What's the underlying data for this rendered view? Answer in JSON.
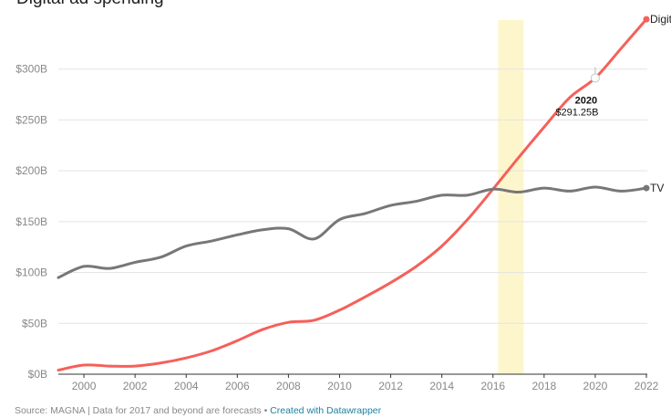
{
  "header": {
    "title": "Digital ad spending"
  },
  "footer": {
    "source": "Source: MAGNA | Data for 2017 and beyond are forecasts",
    "separator": "•",
    "credit": "Created with Datawrapper"
  },
  "chart_data": {
    "type": "line",
    "title": "Digital ad spending",
    "xlabel": "",
    "ylabel": "",
    "xlim": [
      1999,
      2022
    ],
    "ylim": [
      0,
      350
    ],
    "x_ticks": [
      {
        "value": 2000,
        "label": "2000"
      },
      {
        "value": 2002,
        "label": "2002"
      },
      {
        "value": 2004,
        "label": "2004"
      },
      {
        "value": 2006,
        "label": "2006"
      },
      {
        "value": 2008,
        "label": "2008"
      },
      {
        "value": 2010,
        "label": "2010"
      },
      {
        "value": 2012,
        "label": "2012"
      },
      {
        "value": 2014,
        "label": "2014"
      },
      {
        "value": 2016,
        "label": "2016"
      },
      {
        "value": 2018,
        "label": "2018"
      },
      {
        "value": 2020,
        "label": "2020"
      },
      {
        "value": 2022,
        "label": "2022"
      }
    ],
    "y_ticks": [
      {
        "value": 0,
        "label": "$0B"
      },
      {
        "value": 50,
        "label": "$50B"
      },
      {
        "value": 100,
        "label": "$100B"
      },
      {
        "value": 150,
        "label": "$150B"
      },
      {
        "value": 200,
        "label": "$200B"
      },
      {
        "value": 250,
        "label": "$250B"
      },
      {
        "value": 300,
        "label": "$300B"
      }
    ],
    "grid": "horizontal",
    "highlight_band": [
      2016.2,
      2017.2
    ],
    "series": [
      {
        "name": "Digital",
        "color": "#f5605a",
        "x": [
          1999,
          2000,
          2001,
          2002,
          2003,
          2004,
          2005,
          2006,
          2007,
          2008,
          2009,
          2010,
          2011,
          2012,
          2013,
          2014,
          2015,
          2016,
          2017,
          2018,
          2019,
          2020,
          2021,
          2022
        ],
        "values": [
          4,
          9,
          8,
          8,
          11,
          16,
          23,
          33,
          44,
          51,
          53,
          63,
          76,
          90,
          106,
          126,
          152,
          182,
          213,
          243,
          272,
          291.25,
          320,
          349
        ]
      },
      {
        "name": "TV",
        "color": "#777777",
        "x": [
          1999,
          2000,
          2001,
          2002,
          2003,
          2004,
          2005,
          2006,
          2007,
          2008,
          2009,
          2010,
          2011,
          2012,
          2013,
          2014,
          2015,
          2016,
          2017,
          2018,
          2019,
          2020,
          2021,
          2022
        ],
        "values": [
          95,
          106,
          104,
          110,
          115,
          126,
          131,
          137,
          142,
          143,
          133,
          152,
          158,
          166,
          170,
          176,
          176,
          182,
          179,
          183,
          180,
          184,
          180,
          183
        ]
      }
    ],
    "annotation": {
      "series": "Digital",
      "x": 2020,
      "value": 291.25,
      "year_label": "2020",
      "value_label": "$291.25B"
    },
    "end_labels": [
      {
        "series": "Digital",
        "text": "Digit"
      },
      {
        "series": "TV",
        "text": "TV"
      }
    ]
  }
}
